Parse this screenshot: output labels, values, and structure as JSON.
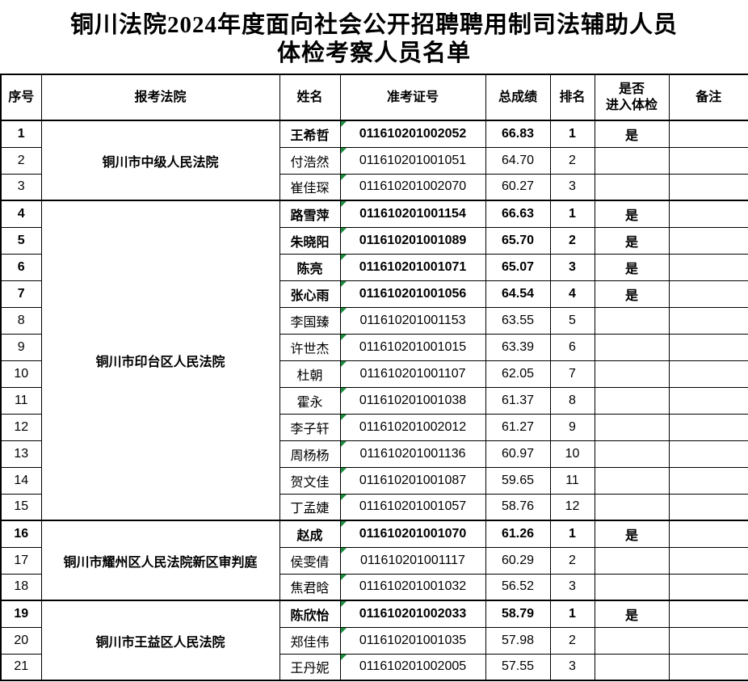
{
  "title": {
    "line1": "铜川法院2024年度面向社会公开招聘聘用制司法辅助人员",
    "line2": "体检考察人员名单"
  },
  "colors": {
    "marker_green": "#1E8E3E",
    "border": "#000000",
    "background": "#FFFFFF",
    "text": "#000000"
  },
  "icons": {
    "ticket_cell_marker": "green-triangle-top-left"
  },
  "table": {
    "headers": [
      "序号",
      "报考法院",
      "姓名",
      "准考证号",
      "总成绩",
      "排名",
      "是否\n进入体检",
      "备注"
    ],
    "groups": [
      {
        "court": "铜川市中级人民法院",
        "rows": [
          {
            "no": "1",
            "name": "王希哲",
            "ticket": "011610201002052",
            "score": "66.83",
            "rank": "1",
            "physical": "是",
            "remark": "",
            "bold": true
          },
          {
            "no": "2",
            "name": "付浩然",
            "ticket": "011610201001051",
            "score": "64.70",
            "rank": "2",
            "physical": "",
            "remark": "",
            "bold": false
          },
          {
            "no": "3",
            "name": "崔佳琛",
            "ticket": "011610201002070",
            "score": "60.27",
            "rank": "3",
            "physical": "",
            "remark": "",
            "bold": false
          }
        ]
      },
      {
        "court": "铜川市印台区人民法院",
        "rows": [
          {
            "no": "4",
            "name": "路雪萍",
            "ticket": "011610201001154",
            "score": "66.63",
            "rank": "1",
            "physical": "是",
            "remark": "",
            "bold": true
          },
          {
            "no": "5",
            "name": "朱晓阳",
            "ticket": "011610201001089",
            "score": "65.70",
            "rank": "2",
            "physical": "是",
            "remark": "",
            "bold": true
          },
          {
            "no": "6",
            "name": "陈亮",
            "ticket": "011610201001071",
            "score": "65.07",
            "rank": "3",
            "physical": "是",
            "remark": "",
            "bold": true
          },
          {
            "no": "7",
            "name": "张心雨",
            "ticket": "011610201001056",
            "score": "64.54",
            "rank": "4",
            "physical": "是",
            "remark": "",
            "bold": true
          },
          {
            "no": "8",
            "name": "李国臻",
            "ticket": "011610201001153",
            "score": "63.55",
            "rank": "5",
            "physical": "",
            "remark": "",
            "bold": false
          },
          {
            "no": "9",
            "name": "许世杰",
            "ticket": "011610201001015",
            "score": "63.39",
            "rank": "6",
            "physical": "",
            "remark": "",
            "bold": false
          },
          {
            "no": "10",
            "name": "杜朝",
            "ticket": "011610201001107",
            "score": "62.05",
            "rank": "7",
            "physical": "",
            "remark": "",
            "bold": false
          },
          {
            "no": "11",
            "name": "霍永",
            "ticket": "011610201001038",
            "score": "61.37",
            "rank": "8",
            "physical": "",
            "remark": "",
            "bold": false
          },
          {
            "no": "12",
            "name": "李子轩",
            "ticket": "011610201002012",
            "score": "61.27",
            "rank": "9",
            "physical": "",
            "remark": "",
            "bold": false
          },
          {
            "no": "13",
            "name": "周杨杨",
            "ticket": "011610201001136",
            "score": "60.97",
            "rank": "10",
            "physical": "",
            "remark": "",
            "bold": false
          },
          {
            "no": "14",
            "name": "贺文佳",
            "ticket": "011610201001087",
            "score": "59.65",
            "rank": "11",
            "physical": "",
            "remark": "",
            "bold": false
          },
          {
            "no": "15",
            "name": "丁孟婕",
            "ticket": "011610201001057",
            "score": "58.76",
            "rank": "12",
            "physical": "",
            "remark": "",
            "bold": false
          }
        ]
      },
      {
        "court": "铜川市耀州区人民法院新区审判庭",
        "rows": [
          {
            "no": "16",
            "name": "赵成",
            "ticket": "011610201001070",
            "score": "61.26",
            "rank": "1",
            "physical": "是",
            "remark": "",
            "bold": true
          },
          {
            "no": "17",
            "name": "侯雯倩",
            "ticket": "011610201001117",
            "score": "60.29",
            "rank": "2",
            "physical": "",
            "remark": "",
            "bold": false
          },
          {
            "no": "18",
            "name": "焦君晗",
            "ticket": "011610201001032",
            "score": "56.52",
            "rank": "3",
            "physical": "",
            "remark": "",
            "bold": false
          }
        ]
      },
      {
        "court": "铜川市王益区人民法院",
        "rows": [
          {
            "no": "19",
            "name": "陈欣怡",
            "ticket": "011610201002033",
            "score": "58.79",
            "rank": "1",
            "physical": "是",
            "remark": "",
            "bold": true
          },
          {
            "no": "20",
            "name": "郑佳伟",
            "ticket": "011610201001035",
            "score": "57.98",
            "rank": "2",
            "physical": "",
            "remark": "",
            "bold": false
          },
          {
            "no": "21",
            "name": "王丹妮",
            "ticket": "011610201002005",
            "score": "57.55",
            "rank": "3",
            "physical": "",
            "remark": "",
            "bold": false
          }
        ]
      }
    ]
  }
}
